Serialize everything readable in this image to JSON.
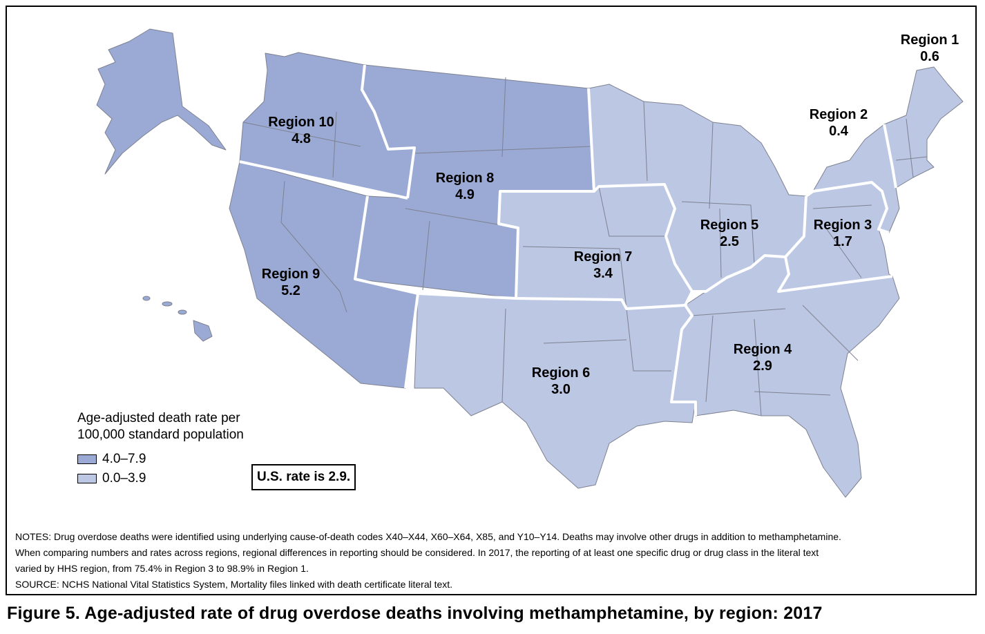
{
  "colors": {
    "dark": "#9aaad4",
    "light": "#bcc7e4",
    "state_border": "#7d8190",
    "region_border": "#ffffff"
  },
  "regions": [
    {
      "name": "Region 1",
      "rate": "0.6",
      "class": "light"
    },
    {
      "name": "Region 2",
      "rate": "0.4",
      "class": "light"
    },
    {
      "name": "Region 3",
      "rate": "1.7",
      "class": "light"
    },
    {
      "name": "Region 4",
      "rate": "2.9",
      "class": "light"
    },
    {
      "name": "Region 5",
      "rate": "2.5",
      "class": "light"
    },
    {
      "name": "Region 6",
      "rate": "3.0",
      "class": "light"
    },
    {
      "name": "Region 7",
      "rate": "3.4",
      "class": "light"
    },
    {
      "name": "Region 8",
      "rate": "4.9",
      "class": "dark"
    },
    {
      "name": "Region 9",
      "rate": "5.2",
      "class": "dark"
    },
    {
      "name": "Region 10",
      "rate": "4.8",
      "class": "dark"
    }
  ],
  "legend": {
    "title_line1": "Age-adjusted death rate per",
    "title_line2": "100,000 standard population",
    "items": [
      {
        "label": "4.0–7.9",
        "color": "#9aaad4"
      },
      {
        "label": "0.0–3.9",
        "color": "#bcc7e4"
      }
    ]
  },
  "us_rate": "U.S. rate is 2.9.",
  "notes": {
    "line1": "NOTES: Drug overdose deaths were identified using underlying cause-of-death codes X40–X44, X60–X64, X85, and Y10–Y14. Deaths may involve other drugs in addition to methamphetamine.",
    "line2": "When comparing numbers and rates across regions, regional differences in reporting should be considered. In 2017, the reporting of at least one specific drug or drug class in the literal text",
    "line3": "varied by HHS region, from 75.4% in Region 3 to 98.9% in Region 1.",
    "source": "SOURCE: NCHS National Vital Statistics System, Mortality files linked with death certificate literal text."
  },
  "figure_title": "Figure 5. Age-adjusted rate of drug overdose deaths involving methamphetamine, by region: 2017"
}
